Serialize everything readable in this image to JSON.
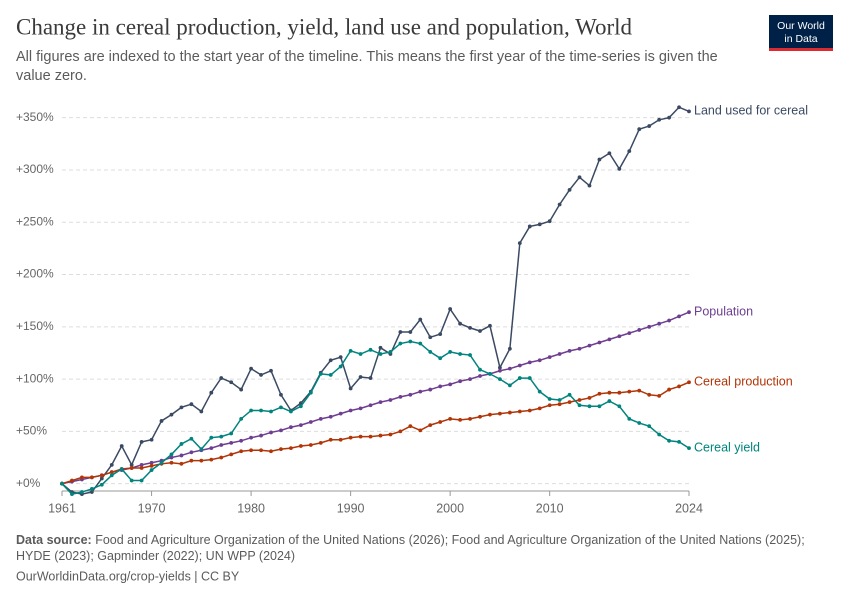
{
  "chart_data": {
    "type": "line",
    "title": "Change in cereal production, yield, land use and population, World",
    "subtitle": "All figures are indexed to the start year of the timeline. This means the first year of the time-series is given the value zero.",
    "logo": [
      "Our World",
      "in Data"
    ],
    "source_label": "Data source:",
    "source": "Food and Agriculture Organization of the United Nations (2026); Food and Agriculture Organization of the United Nations (2025); HYDE (2023); Gapminder (2022); UN WPP (2024)",
    "footer": "OurWorldinData.org/crop-yields | CC BY",
    "x": [
      1961,
      1962,
      1963,
      1964,
      1965,
      1966,
      1967,
      1968,
      1969,
      1970,
      1971,
      1972,
      1973,
      1974,
      1975,
      1976,
      1977,
      1978,
      1979,
      1980,
      1981,
      1982,
      1983,
      1984,
      1985,
      1986,
      1987,
      1988,
      1989,
      1990,
      1991,
      1992,
      1993,
      1994,
      1995,
      1996,
      1997,
      1998,
      1999,
      2000,
      2001,
      2002,
      2003,
      2004,
      2005,
      2006,
      2007,
      2008,
      2009,
      2010,
      2011,
      2012,
      2013,
      2014,
      2015,
      2016,
      2017,
      2018,
      2019,
      2020,
      2021,
      2022,
      2023,
      2024
    ],
    "xlim": [
      1961,
      2024
    ],
    "xticks": [
      1961,
      1970,
      1980,
      1990,
      2000,
      2010,
      2024
    ],
    "ylim": [
      -7,
      365
    ],
    "yticks": [
      {
        "value": 0,
        "label": "+0%"
      },
      {
        "value": 50,
        "label": "+50%"
      },
      {
        "value": 100,
        "label": "+100%"
      },
      {
        "value": 150,
        "label": "+150%"
      },
      {
        "value": 200,
        "label": "+200%"
      },
      {
        "value": 250,
        "label": "+250%"
      },
      {
        "value": 300,
        "label": "+300%"
      },
      {
        "value": 350,
        "label": "+350%"
      }
    ],
    "grid": true,
    "series": [
      {
        "name": "Land used for cereal",
        "color": "#3b4a63",
        "values": [
          0,
          -8,
          -10,
          -8,
          5,
          18,
          36,
          18,
          40,
          42,
          60,
          66,
          73,
          76,
          69,
          87,
          101,
          97,
          90,
          110,
          104,
          108,
          85,
          70,
          77,
          88,
          106,
          118,
          121,
          91,
          102,
          101,
          130,
          124,
          145,
          145,
          157,
          140,
          143,
          167,
          153,
          149,
          146,
          151,
          111,
          129,
          230,
          246,
          248,
          251,
          267,
          281,
          293,
          285,
          310,
          316,
          301,
          318,
          339,
          342,
          348,
          350,
          360,
          356
        ]
      },
      {
        "name": "Population",
        "color": "#6d3e91",
        "values": [
          0,
          2,
          4,
          6,
          8,
          11,
          13,
          15,
          18,
          20,
          22,
          25,
          27,
          30,
          32,
          34,
          37,
          39,
          41,
          44,
          46,
          49,
          51,
          54,
          56,
          59,
          62,
          64,
          67,
          70,
          72,
          75,
          78,
          80,
          83,
          85,
          88,
          90,
          93,
          95,
          98,
          100,
          103,
          105,
          108,
          110,
          113,
          116,
          118,
          121,
          124,
          127,
          129,
          132,
          135,
          138,
          141,
          144,
          147,
          150,
          153,
          156,
          160,
          164
        ]
      },
      {
        "name": "Cereal production",
        "color": "#b13507",
        "values": [
          0,
          3,
          6,
          6,
          8,
          11,
          14,
          15,
          15,
          17,
          19,
          20,
          19,
          22,
          22,
          23,
          25,
          28,
          31,
          32,
          32,
          31,
          33,
          34,
          36,
          37,
          39,
          42,
          42,
          44,
          45,
          45,
          46,
          47,
          50,
          55,
          51,
          56,
          59,
          62,
          61,
          62,
          64,
          66,
          67,
          68,
          69,
          70,
          72,
          75,
          76,
          78,
          80,
          82,
          86,
          87,
          87,
          88,
          89,
          85,
          84,
          90,
          93,
          97
        ]
      },
      {
        "name": "Cereal yield",
        "color": "#00847e",
        "values": [
          0,
          -10,
          -8,
          -5,
          -1,
          8,
          14,
          3,
          3,
          13,
          20,
          28,
          38,
          43,
          33,
          44,
          45,
          48,
          62,
          70,
          70,
          69,
          73,
          69,
          74,
          87,
          105,
          104,
          112,
          127,
          124,
          128,
          124,
          126,
          134,
          136,
          134,
          126,
          120,
          126,
          124,
          123,
          109,
          105,
          100,
          94,
          101,
          101,
          88,
          81,
          80,
          85,
          75,
          74,
          74,
          79,
          74,
          62,
          58,
          55,
          47,
          41,
          40,
          34
        ]
      }
    ]
  }
}
